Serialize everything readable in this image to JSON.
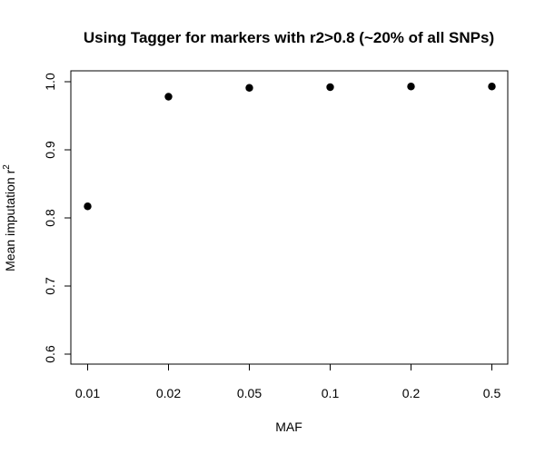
{
  "chart_data": {
    "type": "scatter",
    "title": "Using Tagger for markers with r2>0.8 (~20% of all SNPs)",
    "xlabel": "MAF",
    "ylabel": {
      "text": "Mean imputation r",
      "superscript": "2"
    },
    "x": [
      "0.01",
      "0.02",
      "0.05",
      "0.1",
      "0.2",
      "0.5"
    ],
    "y": [
      0.817,
      0.978,
      0.991,
      0.992,
      0.993,
      0.993
    ],
    "ylim": [
      0.6,
      1.0
    ],
    "yticks": [
      "0.6",
      "0.7",
      "0.8",
      "0.9",
      "1.0"
    ],
    "grid": false,
    "legend": "none",
    "marker_color": "#000000"
  }
}
